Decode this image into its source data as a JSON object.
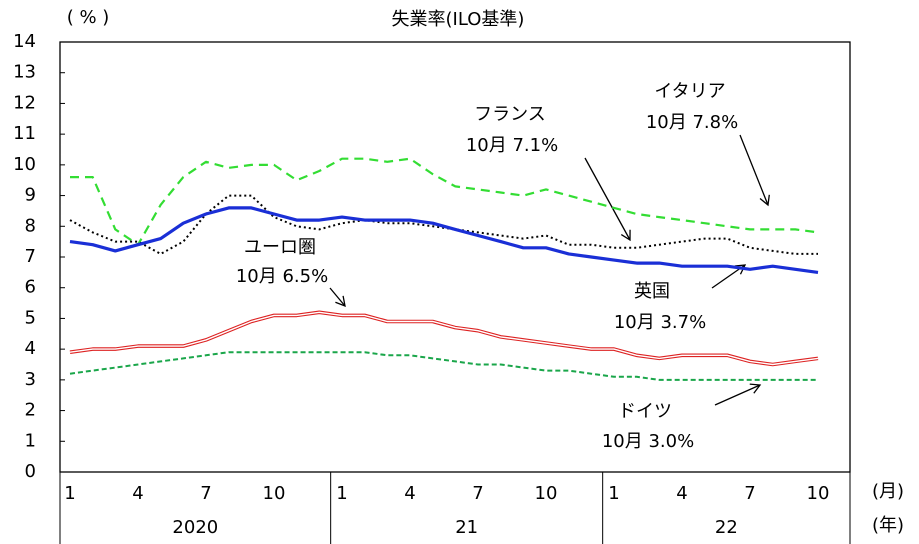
{
  "chart_data": {
    "type": "line",
    "title": "失業率(ILO基準)",
    "y_unit": "( % )",
    "x_unit": "(月)",
    "year_unit": "(年)",
    "categories": [
      "1",
      null,
      null,
      "4",
      null,
      null,
      "7",
      null,
      null,
      "10",
      null,
      null,
      "1",
      null,
      null,
      "4",
      null,
      null,
      "7",
      null,
      null,
      "10",
      null,
      null,
      "1",
      null,
      null,
      "4",
      null,
      null,
      "7",
      null,
      null,
      "10"
    ],
    "years": [
      "2020",
      "21",
      "22"
    ],
    "ylim": [
      0,
      14
    ],
    "yticks": [
      0,
      1,
      2,
      3,
      4,
      5,
      6,
      7,
      8,
      9,
      10,
      11,
      12,
      13,
      14
    ],
    "series": [
      {
        "name": "イタリア",
        "label": "10月 7.8%",
        "color": "#33dd33",
        "style": "dashed",
        "values": [
          9.6,
          9.6,
          7.9,
          7.4,
          8.7,
          9.6,
          10.1,
          9.9,
          10.0,
          10.0,
          9.5,
          9.8,
          10.2,
          10.2,
          10.1,
          10.2,
          9.7,
          9.3,
          9.2,
          9.1,
          9.0,
          9.2,
          9.0,
          8.8,
          8.6,
          8.4,
          8.3,
          8.2,
          8.1,
          8.0,
          7.9,
          7.9,
          7.9,
          7.8
        ]
      },
      {
        "name": "フランス",
        "label": "10月 7.1%",
        "color": "#000000",
        "style": "dotted",
        "values": [
          8.2,
          7.8,
          7.5,
          7.5,
          7.1,
          7.5,
          8.4,
          9.0,
          9.0,
          8.3,
          8.0,
          7.9,
          8.1,
          8.2,
          8.1,
          8.1,
          8.0,
          7.9,
          7.8,
          7.7,
          7.6,
          7.7,
          7.4,
          7.4,
          7.3,
          7.3,
          7.4,
          7.5,
          7.6,
          7.6,
          7.3,
          7.2,
          7.1,
          7.1
        ]
      },
      {
        "name": "ユーロ圏",
        "label": "10月 6.5%",
        "color": "#1a2fd6",
        "style": "thick",
        "values": [
          7.5,
          7.4,
          7.2,
          7.4,
          7.6,
          8.1,
          8.4,
          8.6,
          8.6,
          8.4,
          8.2,
          8.2,
          8.3,
          8.2,
          8.2,
          8.2,
          8.1,
          7.9,
          7.7,
          7.5,
          7.3,
          7.3,
          7.1,
          7.0,
          6.9,
          6.8,
          6.8,
          6.7,
          6.7,
          6.7,
          6.6,
          6.7,
          6.6,
          6.5
        ]
      },
      {
        "name": "英国",
        "label": "10月 3.7%",
        "color": "#dd2222",
        "style": "double",
        "values": [
          3.9,
          4.0,
          4.0,
          4.1,
          4.1,
          4.1,
          4.3,
          4.6,
          4.9,
          5.1,
          5.1,
          5.2,
          5.1,
          5.1,
          4.9,
          4.9,
          4.9,
          4.7,
          4.6,
          4.4,
          4.3,
          4.2,
          4.1,
          4.0,
          4.0,
          3.8,
          3.7,
          3.8,
          3.8,
          3.8,
          3.6,
          3.5,
          3.6,
          3.7
        ]
      },
      {
        "name": "ドイツ",
        "label": "10月 3.0%",
        "color": "#1aa64a",
        "style": "dashed-fine",
        "values": [
          3.2,
          3.3,
          3.4,
          3.5,
          3.6,
          3.7,
          3.8,
          3.9,
          3.9,
          3.9,
          3.9,
          3.9,
          3.9,
          3.9,
          3.8,
          3.8,
          3.7,
          3.6,
          3.5,
          3.5,
          3.4,
          3.3,
          3.3,
          3.2,
          3.1,
          3.1,
          3.0,
          3.0,
          3.0,
          3.0,
          3.0,
          3.0,
          3.0,
          3.0
        ]
      }
    ]
  }
}
